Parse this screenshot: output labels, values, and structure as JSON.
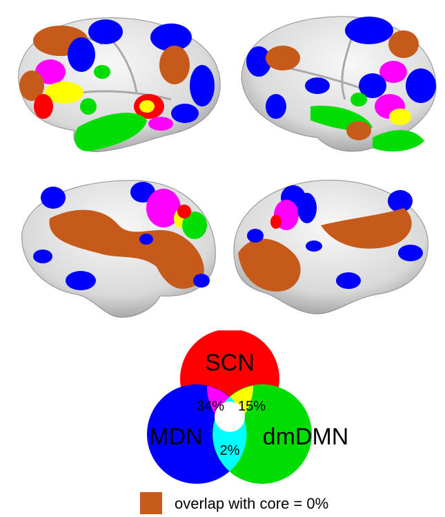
{
  "colors": {
    "SCN": "#ff0000",
    "MDN": "#0000ff",
    "dmDMN": "#00dd00",
    "SCN_MDN": "#ff00ff",
    "SCN_dmDMN": "#ffff00",
    "MDN_dmDMN": "#00ffff",
    "core": "#c65a1b",
    "cortex": "#e6e6e6"
  },
  "venn": {
    "scn_label": "SCN",
    "mdn_label": "MDN",
    "dmdmn_label": "dmDMN",
    "scn_mdn_pct": "34%",
    "scn_dmdmn_pct": "15%",
    "mdn_dmdmn_pct": "2%"
  },
  "legend": {
    "text": "overlap with core = 0%"
  }
}
